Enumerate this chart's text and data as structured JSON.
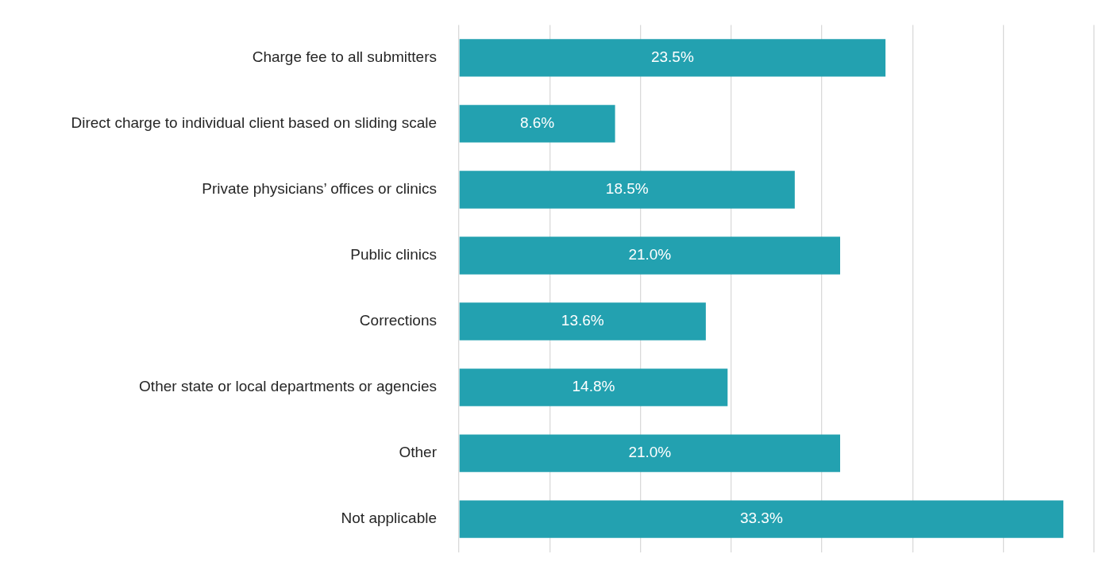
{
  "chart_data": {
    "type": "bar",
    "orientation": "horizontal",
    "categories": [
      "Charge fee to all submitters",
      "Direct charge to individual client based on sliding scale",
      "Private physicians’ offices or clinics",
      "Public clinics",
      "Corrections",
      "Other state or local departments or agencies",
      "Other",
      "Not applicable"
    ],
    "values": [
      23.5,
      8.6,
      18.5,
      21.0,
      13.6,
      14.8,
      21.0,
      33.3
    ],
    "value_labels": [
      "23.5%",
      "8.6%",
      "18.5%",
      "21.0%",
      "13.6%",
      "14.8%",
      "21.0%",
      "33.3%"
    ],
    "color": "#23a1b0",
    "xlim": [
      0,
      35
    ],
    "xticks": [
      {
        "value": 0,
        "label": null
      },
      {
        "value": 5,
        "label": null
      },
      {
        "value": 10,
        "label": null
      },
      {
        "value": 15,
        "label": null
      },
      {
        "value": 20,
        "label": null
      },
      {
        "value": 25,
        "label": null
      },
      {
        "value": 30,
        "label": null
      },
      {
        "value": 35,
        "label": null
      }
    ],
    "grid": "x",
    "tick_labels": "y"
  }
}
